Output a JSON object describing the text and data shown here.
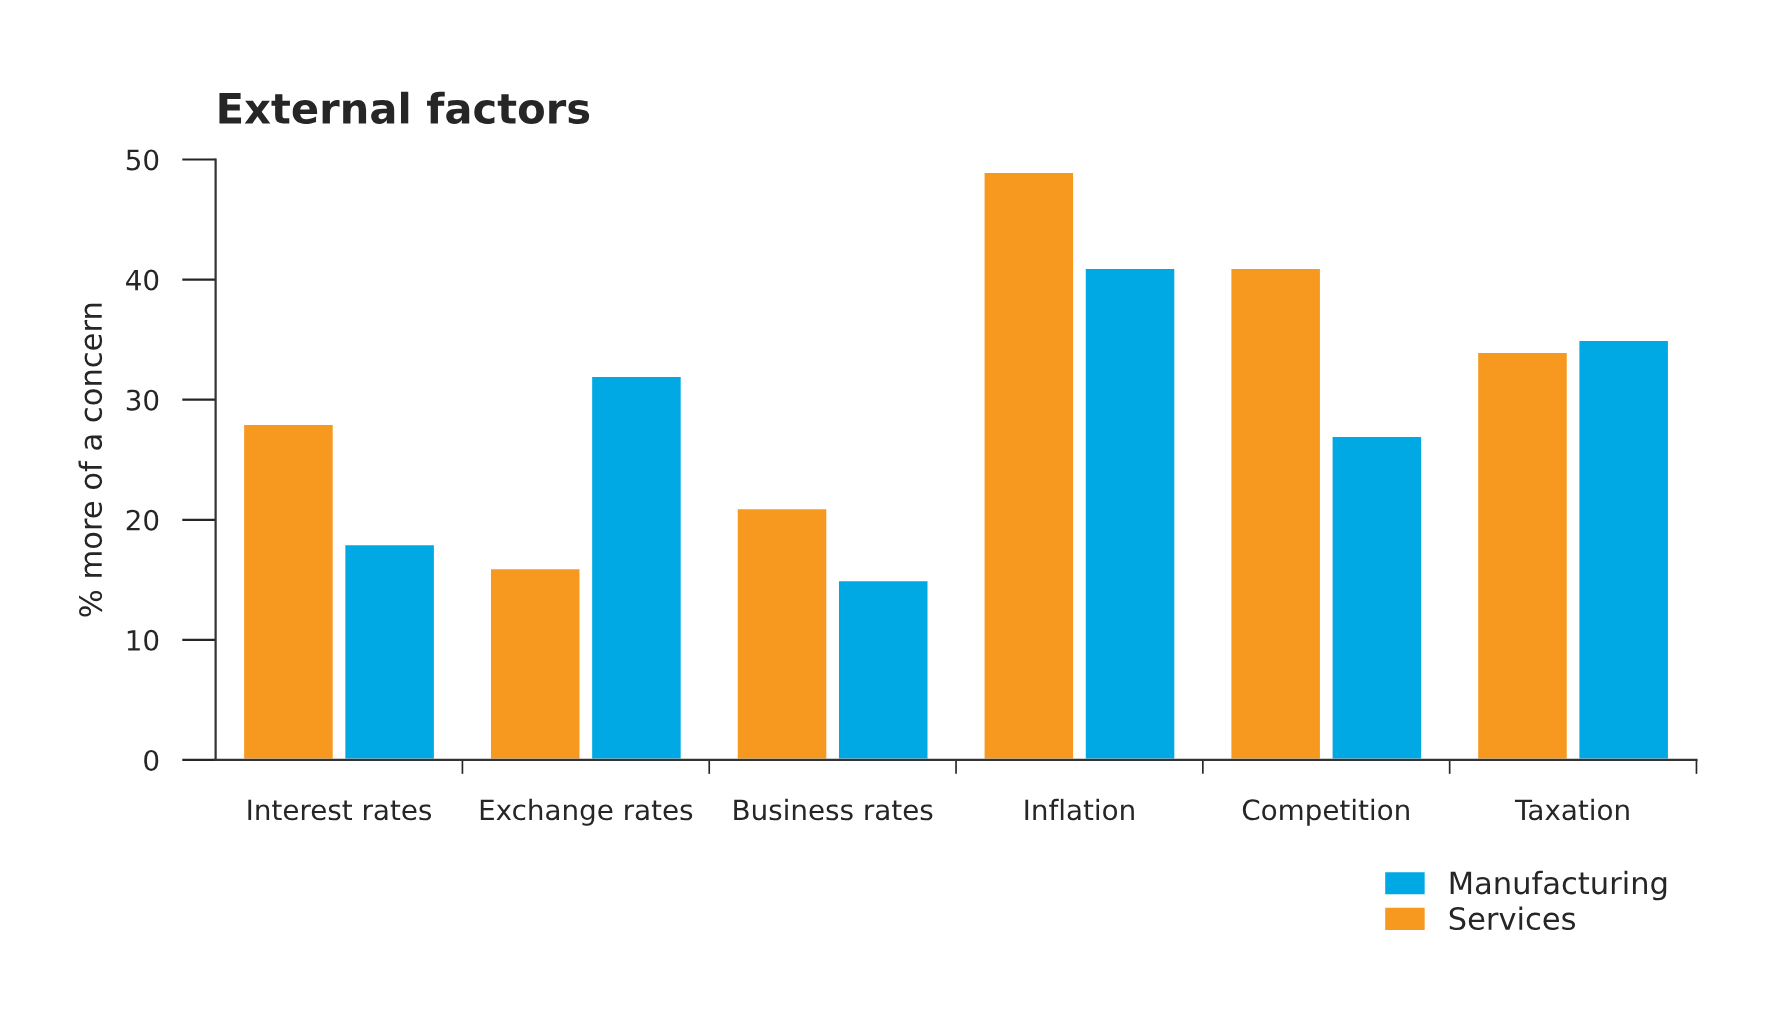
{
  "chart_data": {
    "type": "bar",
    "title": "External factors",
    "ylabel": "% more of a concern",
    "categories": [
      "Interest rates",
      "Exchange rates",
      "Business rates",
      "Inflation",
      "Competition",
      "Taxation"
    ],
    "series": [
      {
        "name": "Services",
        "color": "#f7991f",
        "values": [
          28,
          16,
          21,
          49,
          41,
          34
        ]
      },
      {
        "name": "Manufacturing",
        "color": "#00a9e4",
        "values": [
          18,
          32,
          15,
          41,
          27,
          35
        ]
      }
    ],
    "ylim": [
      0,
      50
    ],
    "yticks": [
      0,
      10,
      20,
      30,
      40,
      50
    ],
    "grid": false,
    "legend": "bottom right"
  }
}
